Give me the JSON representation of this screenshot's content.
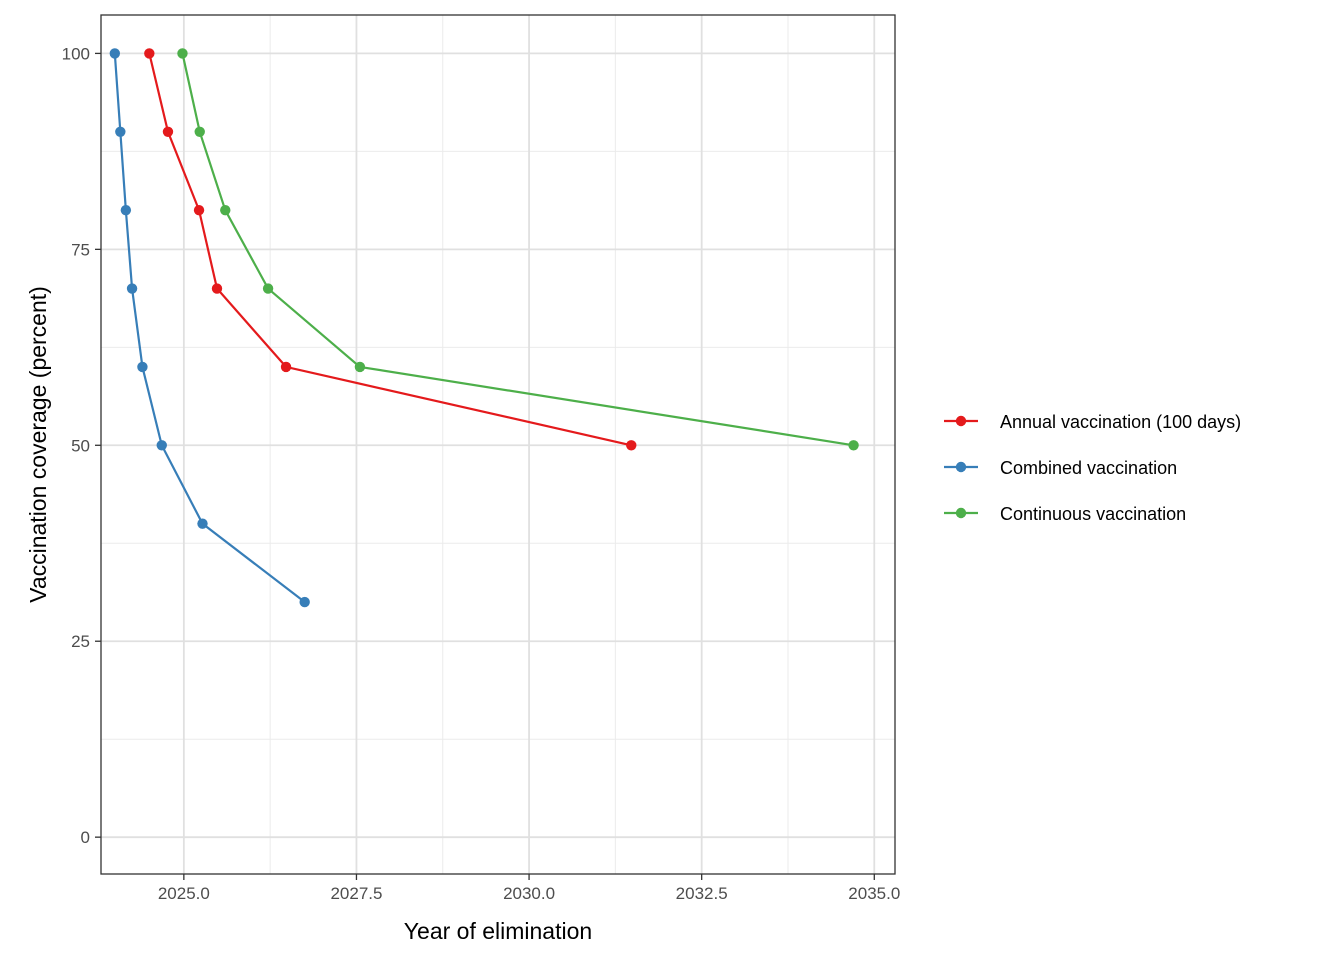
{
  "chart_data": {
    "type": "line",
    "xlabel": "Year of elimination",
    "ylabel": "Vaccination coverage (percent)",
    "xlim": [
      2023.8,
      2035.3
    ],
    "ylim": [
      -4.7,
      104.9
    ],
    "x_ticks": [
      2025.0,
      2027.5,
      2030.0,
      2032.5,
      2035.0
    ],
    "x_tick_labels": [
      "2025.0",
      "2027.5",
      "2030.0",
      "2032.5",
      "2035.0"
    ],
    "y_ticks": [
      0,
      25,
      50,
      75,
      100
    ],
    "y_tick_labels": [
      "0",
      "25",
      "50",
      "75",
      "100"
    ],
    "grid": true,
    "legend_position": "right",
    "series": [
      {
        "name": "Annual vaccination (100 days)",
        "color": "#e41a1c",
        "points": [
          {
            "x": 2024.5,
            "y": 100
          },
          {
            "x": 2024.77,
            "y": 90
          },
          {
            "x": 2025.22,
            "y": 80
          },
          {
            "x": 2025.48,
            "y": 70
          },
          {
            "x": 2026.48,
            "y": 60
          },
          {
            "x": 2031.48,
            "y": 50
          }
        ]
      },
      {
        "name": "Combined vaccination",
        "color": "#377eb8",
        "points": [
          {
            "x": 2024.0,
            "y": 100
          },
          {
            "x": 2024.08,
            "y": 90
          },
          {
            "x": 2024.16,
            "y": 80
          },
          {
            "x": 2024.25,
            "y": 70
          },
          {
            "x": 2024.4,
            "y": 60
          },
          {
            "x": 2024.68,
            "y": 50
          },
          {
            "x": 2025.27,
            "y": 40
          },
          {
            "x": 2026.75,
            "y": 30
          }
        ]
      },
      {
        "name": "Continuous vaccination",
        "color": "#4daf4a",
        "points": [
          {
            "x": 2024.98,
            "y": 100
          },
          {
            "x": 2025.23,
            "y": 90
          },
          {
            "x": 2025.6,
            "y": 80
          },
          {
            "x": 2026.22,
            "y": 70
          },
          {
            "x": 2027.55,
            "y": 60
          },
          {
            "x": 2034.7,
            "y": 50
          }
        ]
      }
    ]
  }
}
